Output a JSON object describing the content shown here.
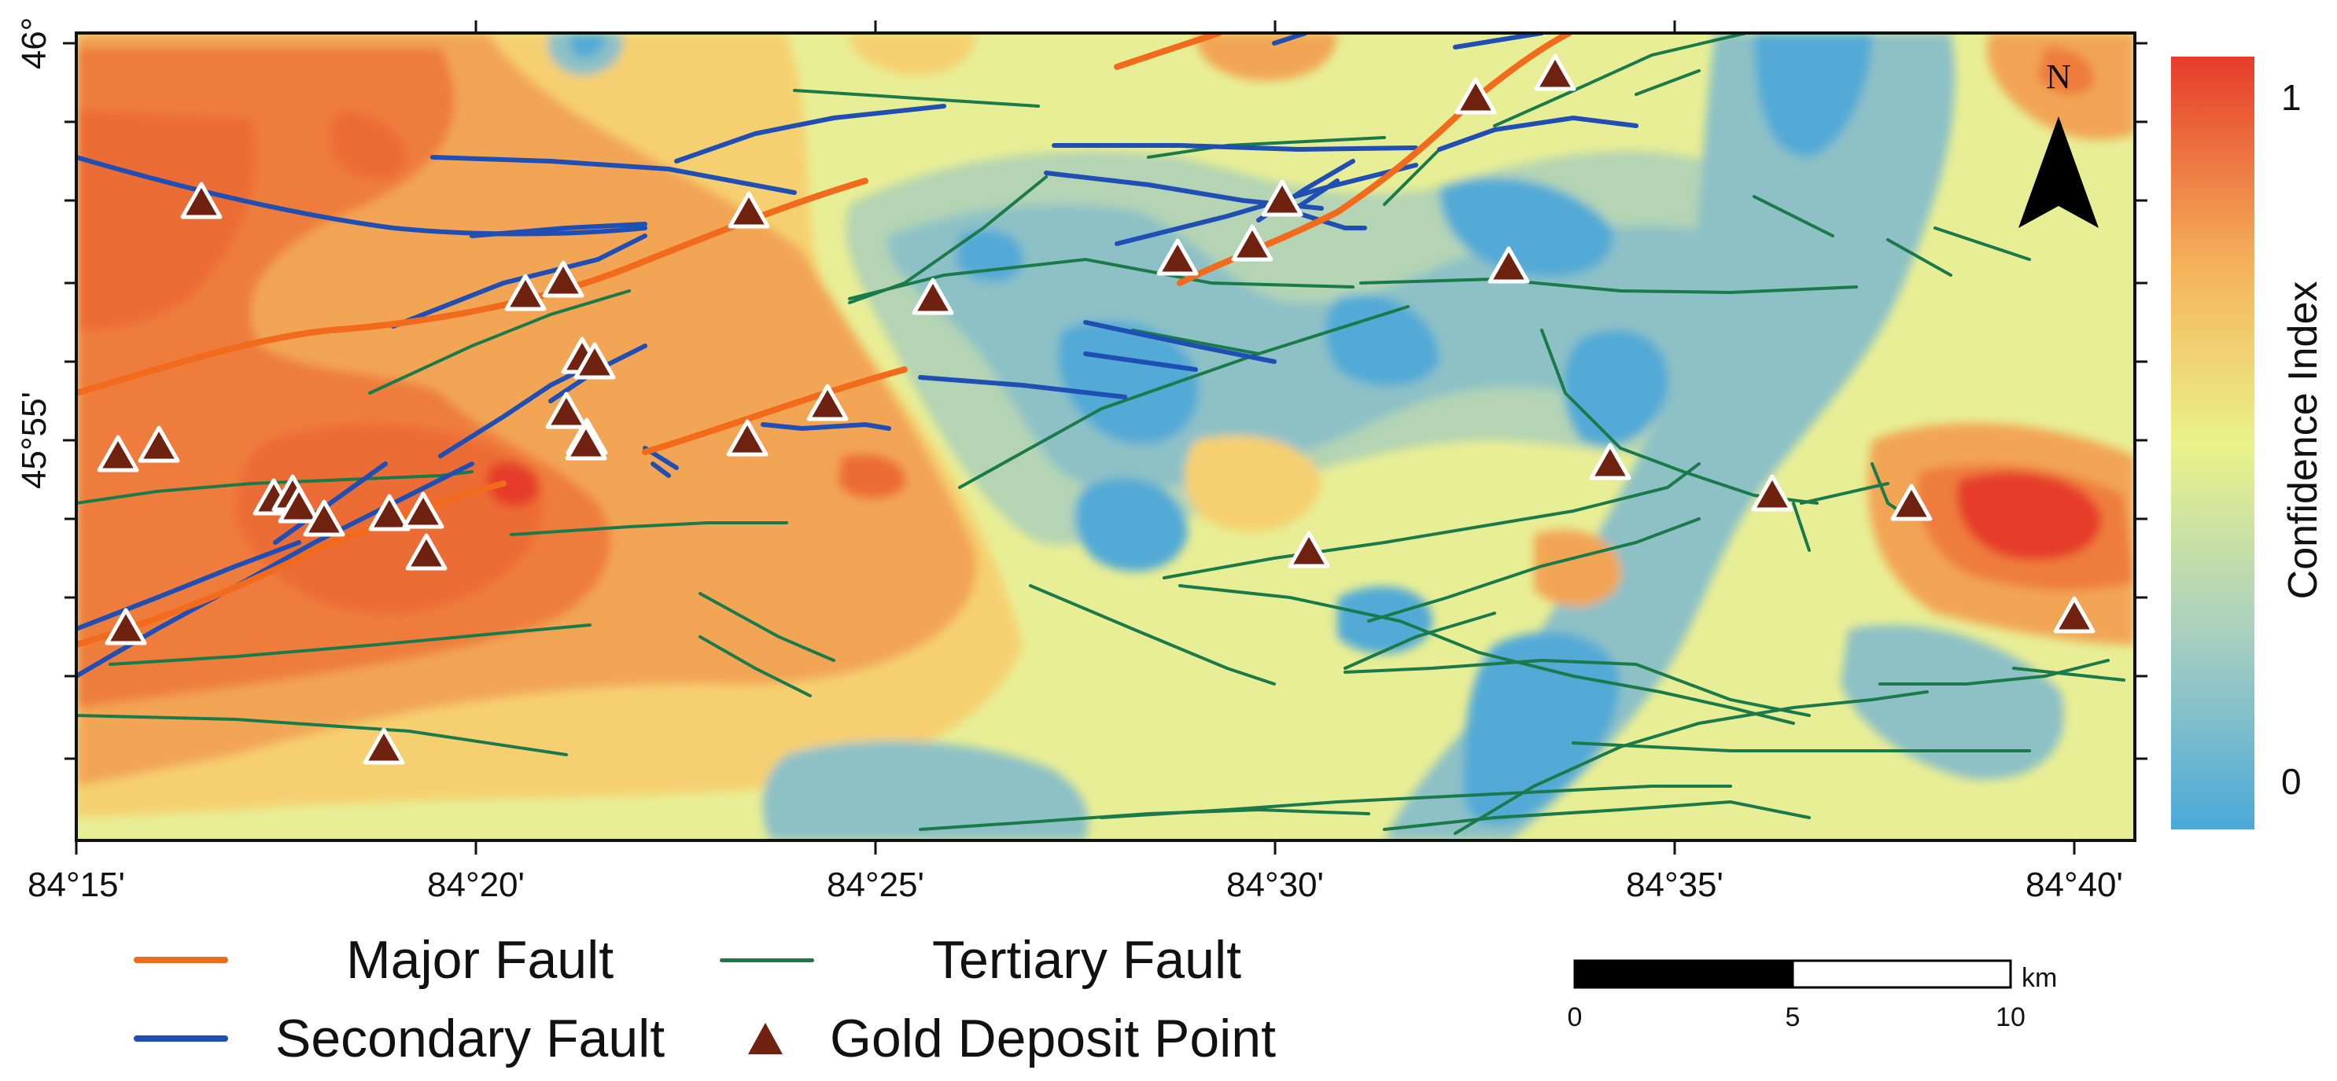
{
  "map": {
    "x_ticks": [
      "84°15'",
      "84°20'",
      "84°25'",
      "84°30'",
      "84°35'",
      "84°40'"
    ],
    "y_ticks": [
      "46°",
      "45°55'"
    ],
    "north_label": "N"
  },
  "colorbar": {
    "title": "Confidence Index",
    "max_label": "1",
    "min_label": "0",
    "colors": [
      "#4aa9d9",
      "#7fbdc8",
      "#b7d7b4",
      "#e6f08c",
      "#f6d36a",
      "#f2a554",
      "#ee7a3c",
      "#e53c2a"
    ]
  },
  "legend": {
    "major_fault": "Major Fault",
    "secondary_fault": "Secondary Fault",
    "tertiary_fault": "Tertiary Fault",
    "gold_deposit": "Gold Deposit Point",
    "major_color": "#f26a1b",
    "secondary_color": "#1f4fb4",
    "tertiary_color": "#1a7a4a",
    "deposit_color": "#6f2210"
  },
  "scale_bar": {
    "unit": "km",
    "labels": [
      "0",
      "5",
      "10"
    ]
  }
}
